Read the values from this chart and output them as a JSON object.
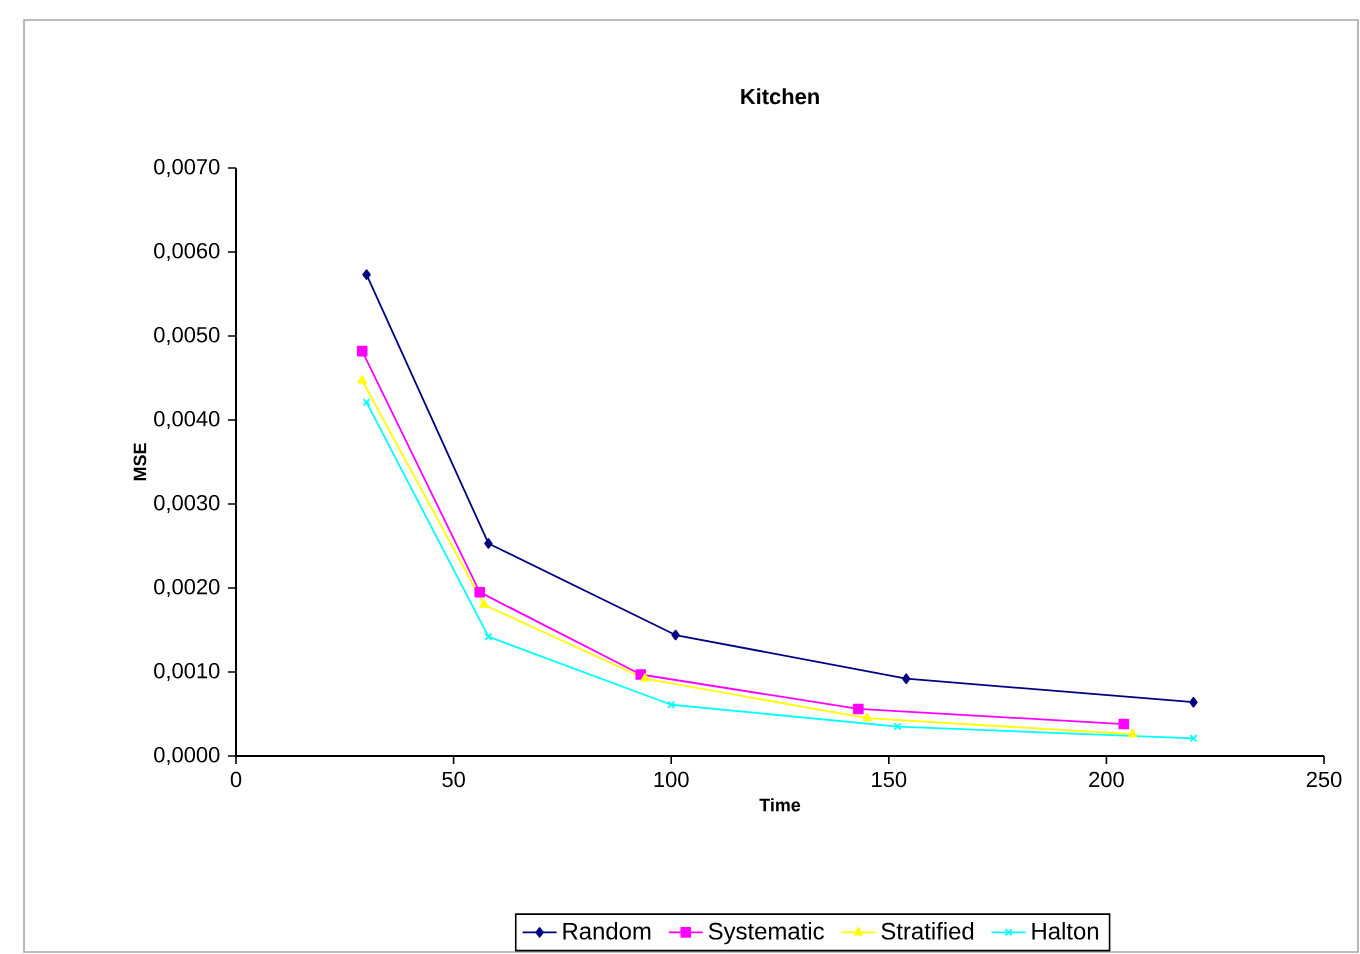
{
  "chart_data": {
    "type": "line",
    "title": "Kitchen",
    "xlabel": "Time",
    "ylabel": "MSE",
    "xlim": [
      0,
      250
    ],
    "xticks": [
      0,
      50,
      100,
      150,
      200,
      250
    ],
    "ylim": [
      0,
      0.007
    ],
    "yticks": [
      {
        "value": 0,
        "label": "0,0000"
      },
      {
        "value": 0.001,
        "label": "0,0010"
      },
      {
        "value": 0.002,
        "label": "0,0020"
      },
      {
        "value": 0.003,
        "label": "0,0030"
      },
      {
        "value": 0.004,
        "label": "0,0040"
      },
      {
        "value": 0.005,
        "label": "0,0050"
      },
      {
        "value": 0.006,
        "label": "0,0060"
      },
      {
        "value": 0.007,
        "label": "0,0070"
      }
    ],
    "grid": false,
    "legend": "bottom",
    "line_style": "solid",
    "series": [
      {
        "name": "Random",
        "color": "#000080",
        "marker": "diamond",
        "x": [
          30,
          58,
          101,
          154,
          220
        ],
        "values": [
          0.00573,
          0.00253,
          0.00144,
          0.00092,
          0.00064
        ]
      },
      {
        "name": "Systematic",
        "color": "#ff00ff",
        "marker": "square",
        "x": [
          29,
          56,
          93,
          143,
          204
        ],
        "values": [
          0.00482,
          0.00195,
          0.00097,
          0.00056,
          0.00038
        ]
      },
      {
        "name": "Stratified",
        "color": "#ffff00",
        "marker": "triangle",
        "x": [
          29,
          57,
          94,
          145,
          206
        ],
        "values": [
          0.00447,
          0.0018,
          0.00092,
          0.00045,
          0.00026
        ]
      },
      {
        "name": "Halton",
        "color": "#00ffff",
        "marker": "cross",
        "x": [
          30,
          58,
          100,
          152,
          220
        ],
        "values": [
          0.00421,
          0.00142,
          0.00061,
          0.00035,
          0.00021
        ]
      }
    ]
  }
}
